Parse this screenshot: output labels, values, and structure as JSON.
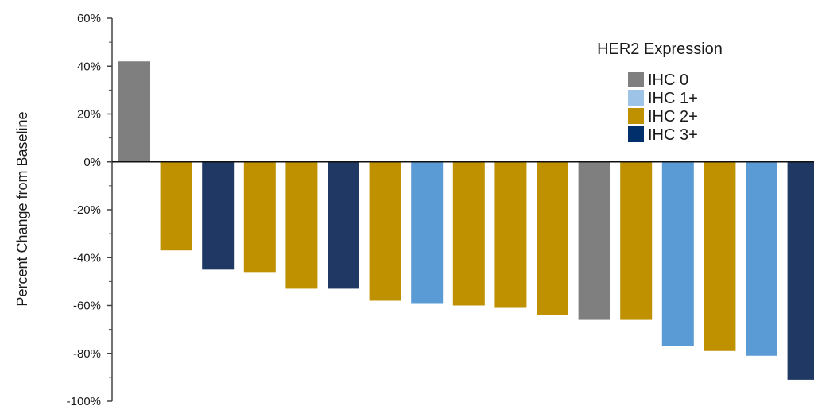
{
  "chart_data": {
    "type": "bar",
    "title": "",
    "xlabel": "",
    "ylabel": "Percent Change from Baseline",
    "ylim": [
      -100,
      60
    ],
    "yticks": [
      "60%",
      "40%",
      "20%",
      "0%",
      "-20%",
      "-40%",
      "-60%",
      "-80%",
      "-100%"
    ],
    "ytick_values": [
      60,
      40,
      20,
      0,
      -20,
      -40,
      -60,
      -80,
      -100
    ],
    "grid": false,
    "legend_position": "top-right",
    "legend_title": "HER2 Expression",
    "groups": [
      {
        "name": "IHC 0",
        "legend_color": "#7f7f7f",
        "bar_color": "#7f7f7f"
      },
      {
        "name": "IHC 1+",
        "legend_color": "#9dc3e6",
        "bar_color": "#5b9bd5"
      },
      {
        "name": "IHC 2+",
        "legend_color": "#bf9000",
        "bar_color": "#bf9000"
      },
      {
        "name": "IHC 3+",
        "legend_color": "#002f6c",
        "bar_color": "#1f3864"
      }
    ],
    "bars": [
      {
        "value": 42,
        "group": "IHC 0"
      },
      {
        "value": -37,
        "group": "IHC 2+"
      },
      {
        "value": -45,
        "group": "IHC 3+"
      },
      {
        "value": -46,
        "group": "IHC 2+"
      },
      {
        "value": -53,
        "group": "IHC 2+"
      },
      {
        "value": -53,
        "group": "IHC 3+"
      },
      {
        "value": -58,
        "group": "IHC 2+"
      },
      {
        "value": -59,
        "group": "IHC 1+"
      },
      {
        "value": -60,
        "group": "IHC 2+"
      },
      {
        "value": -61,
        "group": "IHC 2+"
      },
      {
        "value": -64,
        "group": "IHC 2+"
      },
      {
        "value": -66,
        "group": "IHC 0"
      },
      {
        "value": -66,
        "group": "IHC 2+"
      },
      {
        "value": -77,
        "group": "IHC 1+"
      },
      {
        "value": -79,
        "group": "IHC 2+"
      },
      {
        "value": -81,
        "group": "IHC 1+"
      },
      {
        "value": -91,
        "group": "IHC 3+"
      }
    ]
  }
}
